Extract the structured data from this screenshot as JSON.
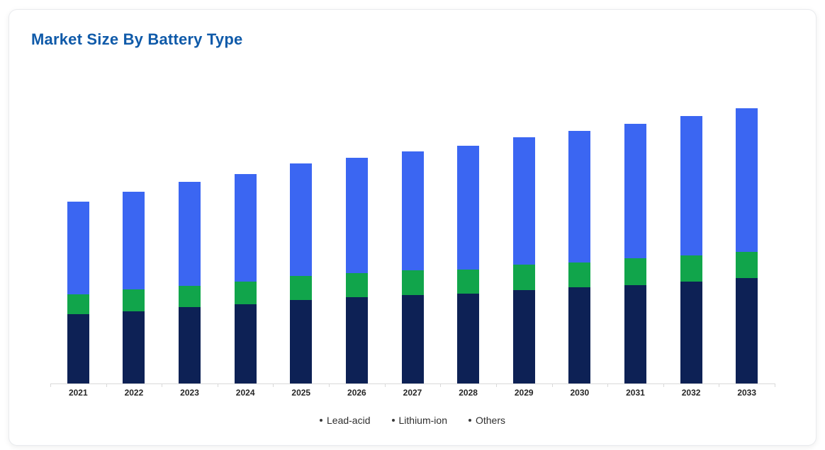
{
  "card": {
    "title": "Market Size By Battery Type",
    "title_color": "#0f5aa9"
  },
  "chart_data": {
    "type": "bar",
    "stacked": true,
    "title": "Market Size By Battery Type",
    "categories": [
      "2021",
      "2022",
      "2023",
      "2024",
      "2025",
      "2026",
      "2027",
      "2028",
      "2029",
      "2030",
      "2031",
      "2032",
      "2033"
    ],
    "series": [
      {
        "name": "Lead-acid",
        "color": "#0d2155",
        "stack_order": 0,
        "values": [
          98,
          102,
          108,
          112,
          118,
          122,
          125,
          127,
          132,
          136,
          139,
          144,
          149
        ]
      },
      {
        "name": "Lithium-ion",
        "color": "#3b66f2",
        "stack_order": 2,
        "values": [
          131,
          138,
          147,
          152,
          159,
          163,
          168,
          175,
          180,
          186,
          190,
          197,
          203
        ]
      },
      {
        "name": "Others",
        "color": "#11a54b",
        "stack_order": 1,
        "values": [
          28,
          31,
          30,
          32,
          34,
          34,
          35,
          34,
          36,
          35,
          38,
          37,
          37
        ]
      }
    ],
    "totals": [
      257,
      271,
      285,
      296,
      311,
      319,
      328,
      336,
      348,
      357,
      367,
      378,
      389
    ],
    "value_units": "relative (no y-axis shown)",
    "xlabel": "",
    "ylabel": "",
    "ylim": [
      0,
      400
    ],
    "y_axis_visible": false,
    "gridlines": false,
    "legend_position": "bottom",
    "legend_labels": [
      "Lead-acid",
      "Lithium-ion",
      "Others"
    ],
    "axis_line_color": "#d9d9d9",
    "tick_label_color": "#262626"
  }
}
